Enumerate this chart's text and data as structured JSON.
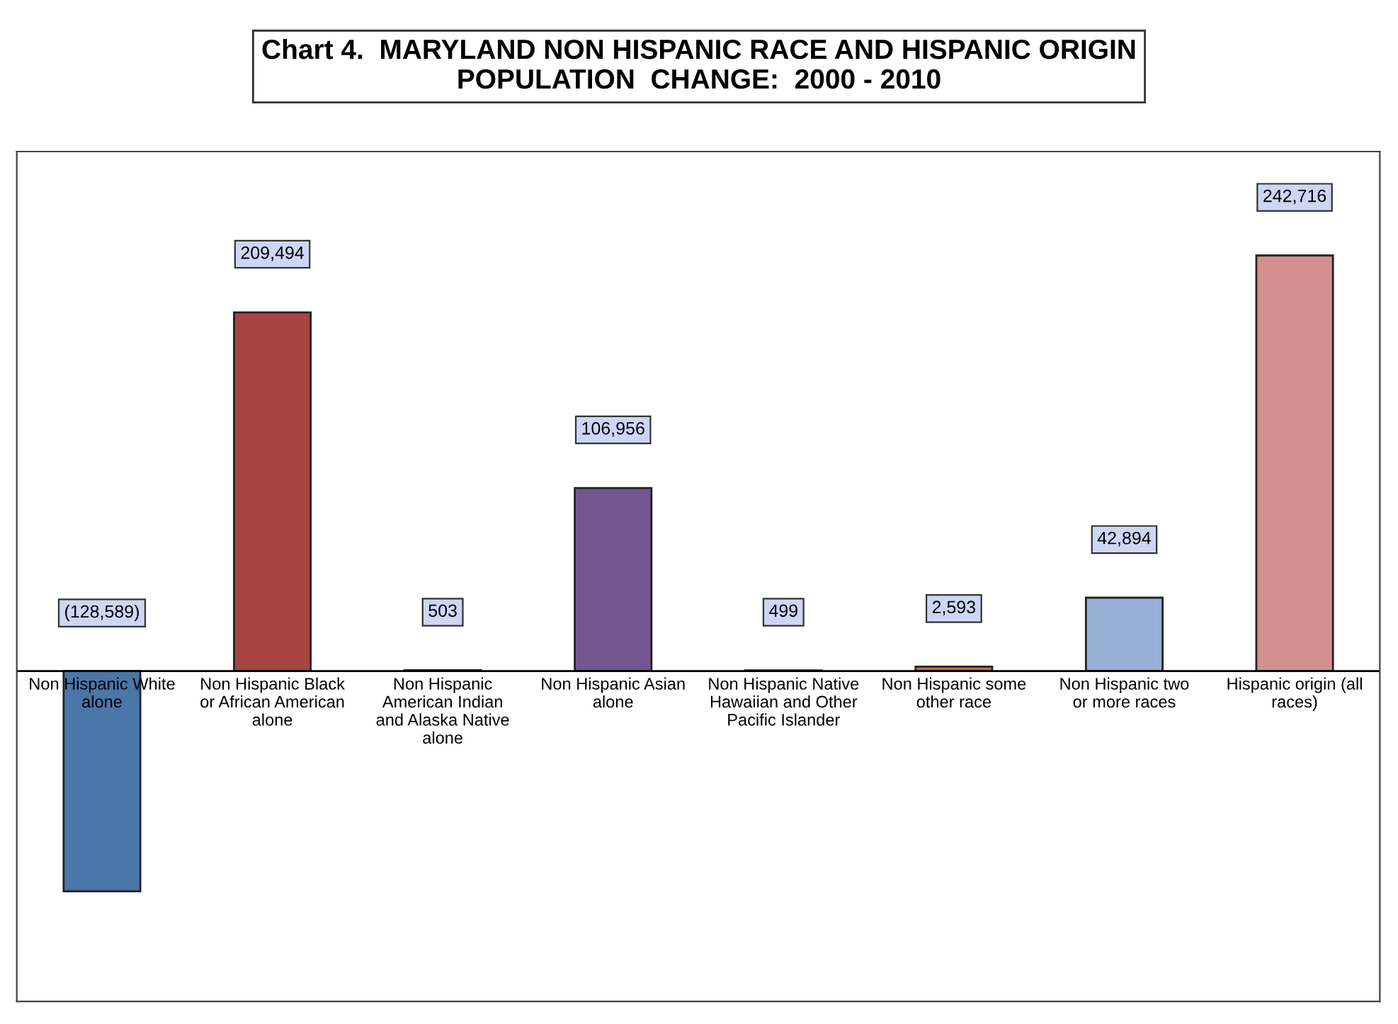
{
  "chart_data": {
    "type": "bar",
    "title": "Chart 4.  MARYLAND NON HISPANIC RACE AND HISPANIC ORIGIN\nPOPULATION  CHANGE:  2000 - 2010",
    "categories": [
      "Non Hispanic White\nalone",
      "Non Hispanic Black\nor African American\nalone",
      "Non Hispanic\nAmerican Indian\nand Alaska Native\nalone",
      "Non Hispanic Asian\nalone",
      "Non Hispanic Native\nHawaiian and Other\nPacific Islander",
      "Non Hispanic some\nother race",
      "Non Hispanic two\nor more races",
      "Hispanic origin (all\nraces)"
    ],
    "values": [
      -128589,
      209494,
      503,
      106956,
      499,
      2593,
      42894,
      242716
    ],
    "value_labels": [
      "(128,589)",
      "209,494",
      "503",
      "106,956",
      "499",
      "2,593",
      "42,894",
      "242,716"
    ],
    "colors": [
      "#4a76a8",
      "#a84442",
      "#6b8e3a",
      "#735590",
      "#3a8ea0",
      "#c0783a",
      "#98afd6",
      "#d48f8f"
    ],
    "legend": false
  }
}
